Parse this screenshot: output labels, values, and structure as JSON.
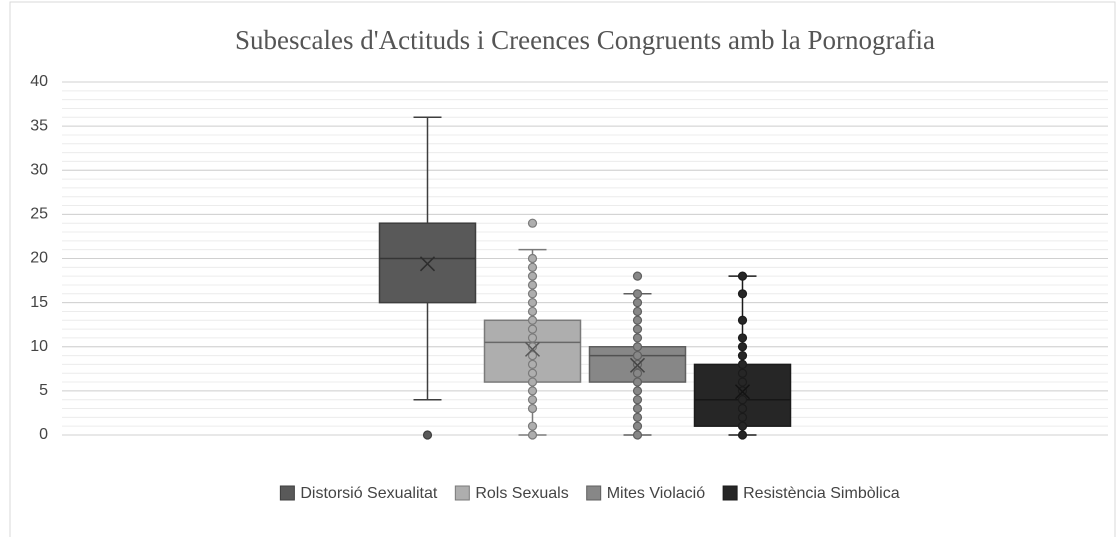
{
  "chart_data": {
    "type": "box",
    "title": "Subescales d'Actituds i Creences Congruents amb la Pornografia",
    "ylim": [
      0,
      40
    ],
    "yticks": [
      0,
      5,
      10,
      15,
      20,
      25,
      30,
      35,
      40
    ],
    "grid": true,
    "minor_grid_step": 1,
    "legend": "bottom",
    "series": [
      {
        "name": "Distorsió Sexualitat",
        "color": "#595959",
        "min": 4,
        "q1": 15,
        "median": 20,
        "q3": 24,
        "max": 36,
        "mean": 19.4,
        "points": [
          0
        ]
      },
      {
        "name": "Rols Sexuals",
        "color": "#aeaeae",
        "min": 0,
        "q1": 6,
        "median": 10.5,
        "q3": 13,
        "max": 21,
        "mean": 9.7,
        "points": [
          0,
          1,
          3,
          4,
          5,
          6,
          7,
          8,
          9,
          10,
          11,
          12,
          13,
          14,
          15,
          16,
          17,
          18,
          19,
          20,
          24
        ]
      },
      {
        "name": "Mites Violació",
        "color": "#878787",
        "min": 0,
        "q1": 6,
        "median": 9,
        "q3": 10,
        "max": 16,
        "mean": 7.9,
        "points": [
          0,
          1,
          2,
          3,
          4,
          5,
          6,
          7,
          8,
          9,
          10,
          11,
          12,
          13,
          14,
          15,
          16,
          18
        ]
      },
      {
        "name": "Resistència Simbòlica",
        "color": "#262626",
        "min": 0,
        "q1": 1,
        "median": 4,
        "q3": 8,
        "max": 18,
        "mean": 4.9,
        "points": [
          0,
          1,
          2,
          3,
          4,
          5,
          6,
          7,
          8,
          9,
          10,
          11,
          13,
          16,
          18
        ]
      }
    ]
  }
}
